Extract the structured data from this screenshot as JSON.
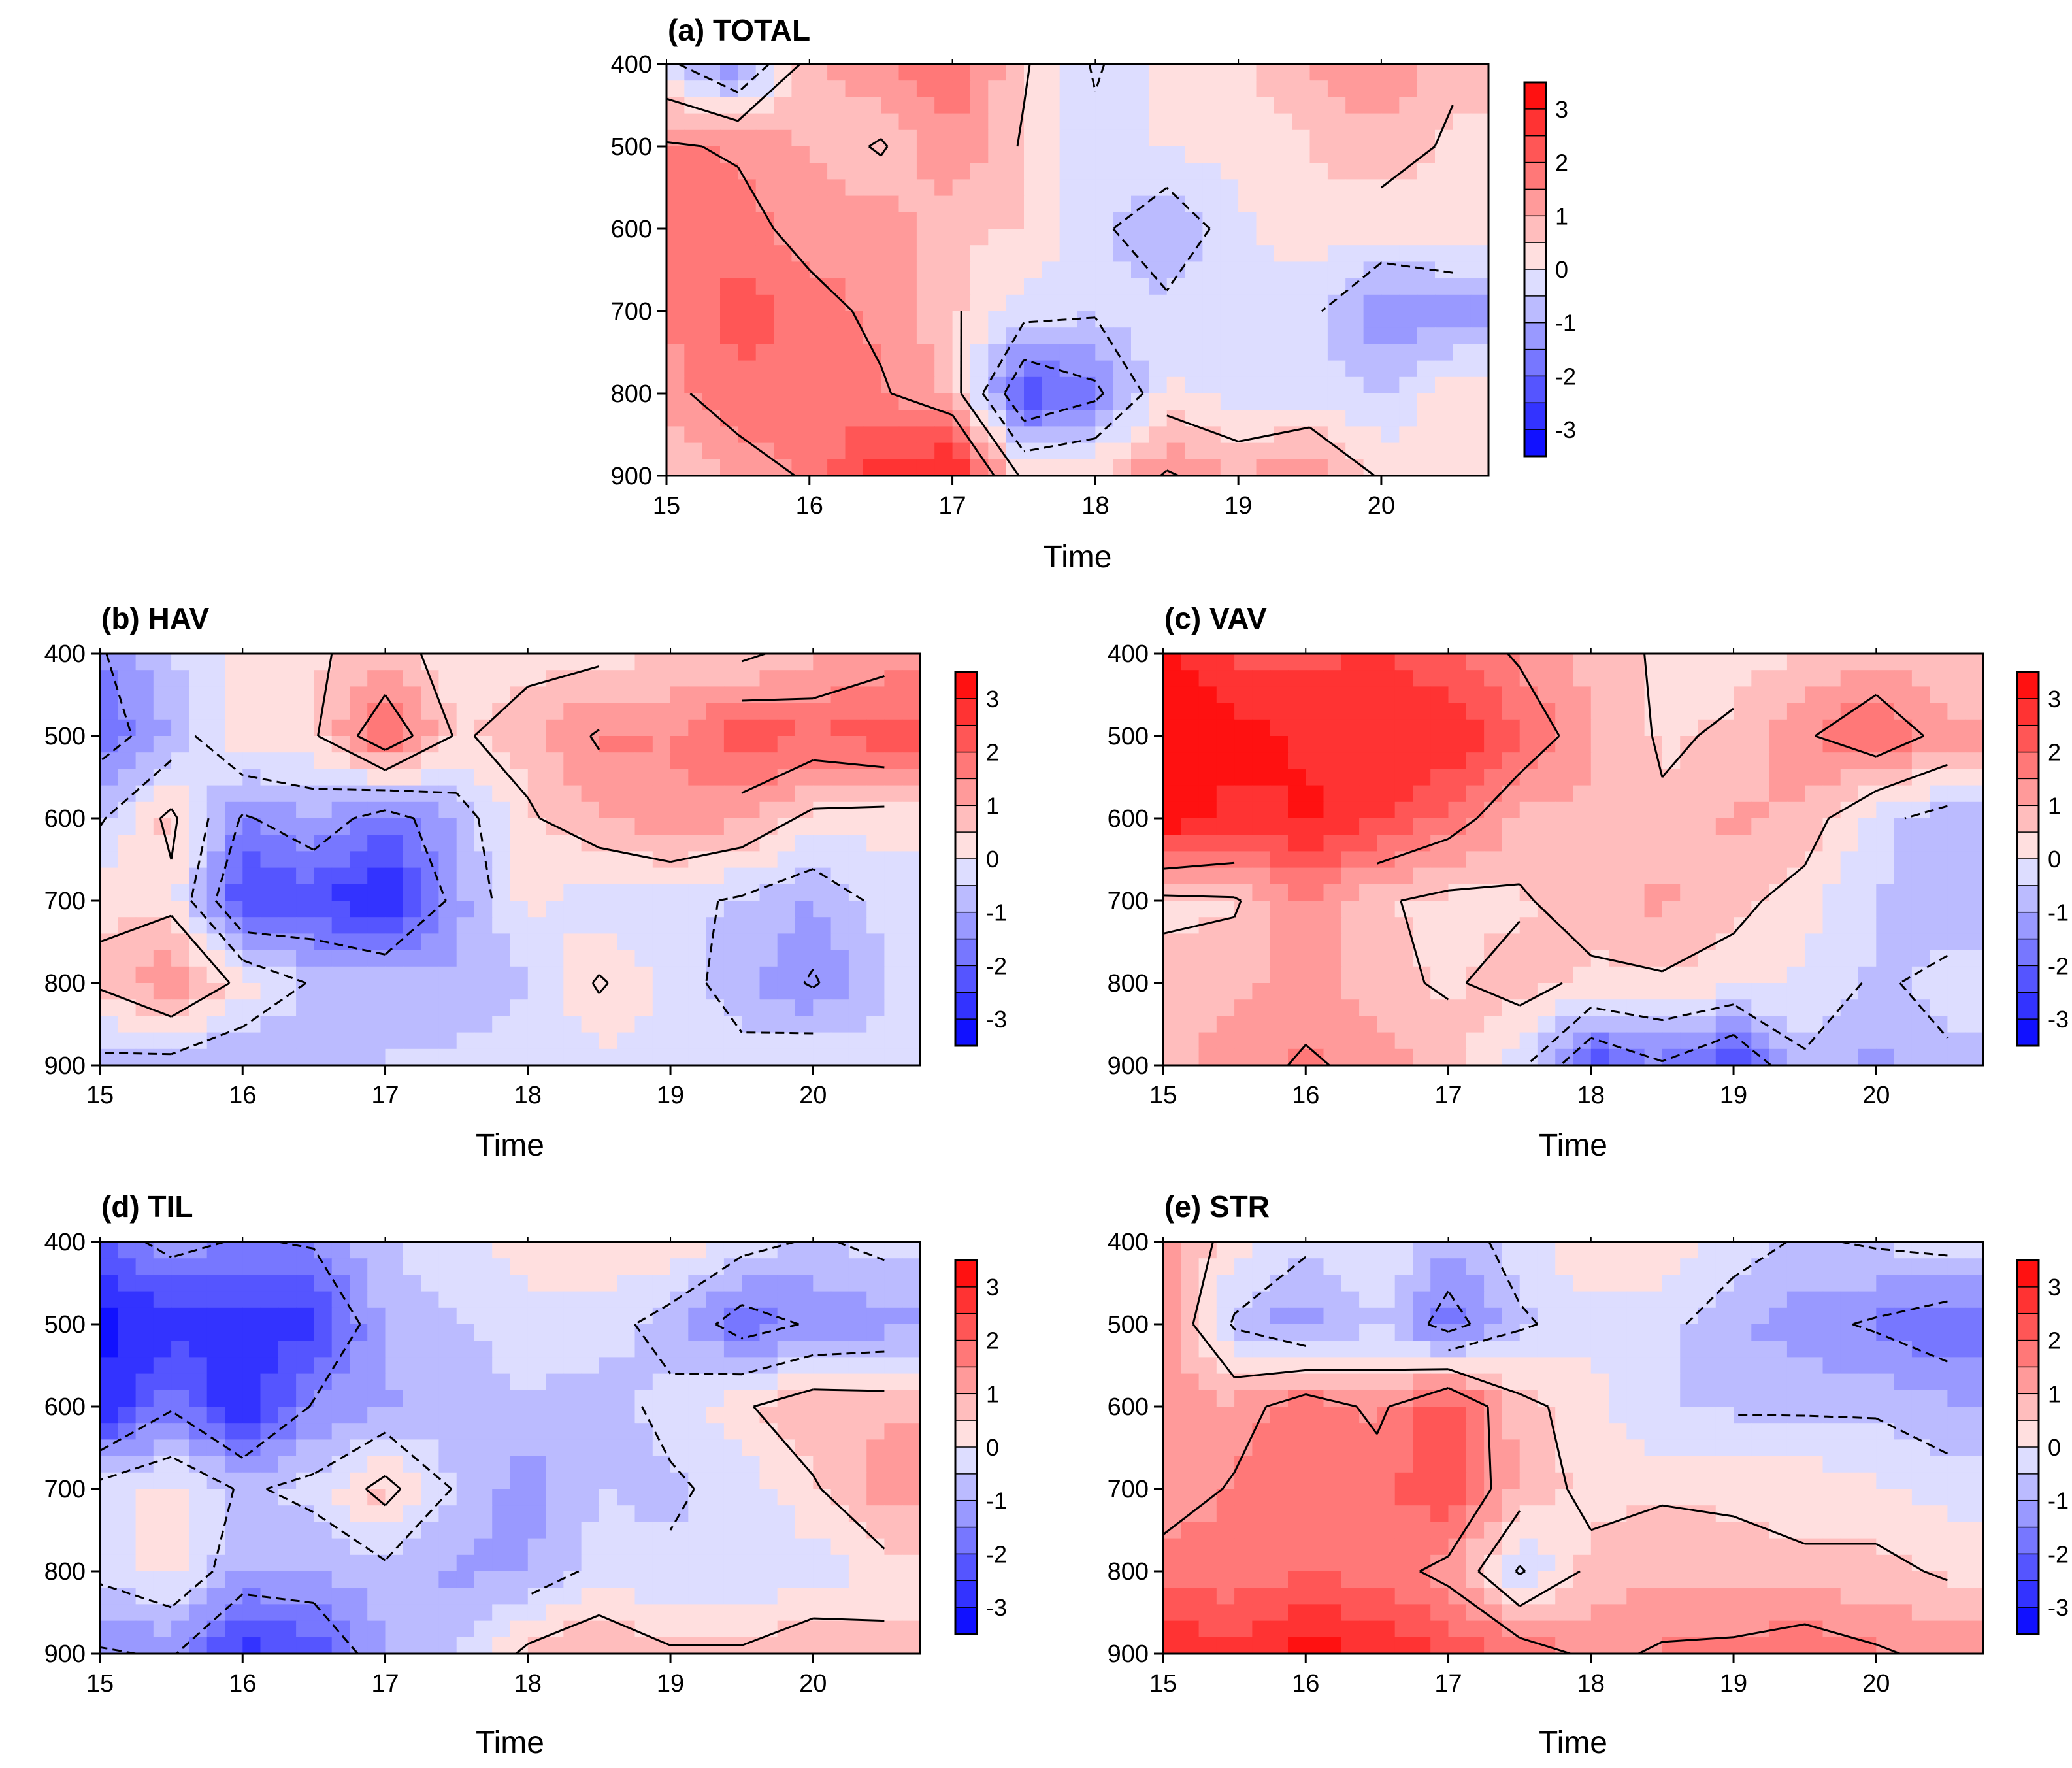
{
  "chart_data": [
    {
      "type": "heatmap",
      "id": "a",
      "title": "(a) TOTAL",
      "xlabel": "Time",
      "ylabel": "",
      "x_ticks": [
        15,
        16,
        17,
        18,
        19,
        20
      ],
      "y_ticks": [
        400,
        500,
        600,
        700,
        800,
        900
      ],
      "xlim": [
        15,
        20.75
      ],
      "ylim": [
        900,
        400
      ],
      "colorbar": {
        "ticks": [
          3,
          2,
          1,
          0,
          -1,
          -2,
          -3
        ],
        "range": [
          -3.5,
          3.5
        ],
        "levels": 14
      },
      "x": [
        15,
        15.5,
        16,
        16.5,
        17,
        17.5,
        18,
        18.5,
        19,
        19.5,
        20,
        20.5
      ],
      "y": [
        400,
        500,
        600,
        700,
        800,
        900
      ],
      "z": [
        [
          -0.3,
          -1.5,
          0.8,
          1.5,
          1.8,
          0.6,
          -0.6,
          0.2,
          0.4,
          1.0,
          1.5,
          0.6
        ],
        [
          1.6,
          1.4,
          1.0,
          0.4,
          1.5,
          0.4,
          -0.3,
          0.1,
          0.1,
          0.5,
          0.8,
          0.4
        ],
        [
          1.9,
          1.8,
          1.2,
          1.3,
          0.6,
          0.5,
          -0.3,
          -1.1,
          -0.1,
          0.3,
          0.2,
          0.3
        ],
        [
          1.5,
          2.2,
          1.8,
          1.3,
          0.6,
          -0.2,
          -0.4,
          -0.3,
          -0.2,
          -0.3,
          -1.5,
          -1.2
        ],
        [
          1.3,
          1.9,
          1.9,
          1.6,
          0.9,
          -2.4,
          -1.7,
          0.1,
          -0.2,
          -0.2,
          -0.5,
          0.3
        ],
        [
          0.5,
          1.1,
          1.6,
          2.8,
          3.2,
          0.3,
          0.5,
          1.6,
          1.0,
          1.5,
          0.4,
          0.3
        ]
      ]
    },
    {
      "type": "heatmap",
      "id": "b",
      "title": "(b) HAV",
      "xlabel": "Time",
      "ylabel": "",
      "x_ticks": [
        15,
        16,
        17,
        18,
        19,
        20
      ],
      "y_ticks": [
        400,
        500,
        600,
        700,
        800,
        900
      ],
      "xlim": [
        15,
        20.75
      ],
      "ylim": [
        900,
        400
      ],
      "colorbar": {
        "ticks": [
          3,
          2,
          1,
          0,
          -1,
          -2,
          -3
        ],
        "range": [
          -3.5,
          3.5
        ],
        "levels": 14
      },
      "x": [
        15,
        15.5,
        16,
        16.5,
        17,
        17.5,
        18,
        18.5,
        19,
        19.5,
        20,
        20.5
      ],
      "y": [
        400,
        500,
        600,
        700,
        800,
        900
      ],
      "z": [
        [
          -1.6,
          -0.5,
          0.3,
          0.4,
          0.8,
          0.2,
          0.3,
          0.3,
          0.5,
          0.3,
          0.9,
          1.2
        ],
        [
          -1.9,
          -1.0,
          0.5,
          0.4,
          2.2,
          0.4,
          0.8,
          1.6,
          1.5,
          2.4,
          2.0,
          2.3
        ],
        [
          -0.6,
          0.7,
          -1.6,
          -1.0,
          -1.9,
          -0.9,
          0.4,
          1.0,
          1.4,
          1.1,
          0.3,
          0.2
        ],
        [
          0.4,
          0.3,
          -2.6,
          -2.3,
          -3.2,
          -1.2,
          0.2,
          -0.4,
          -0.3,
          -0.6,
          -1.0,
          -0.3
        ],
        [
          0.6,
          1.4,
          0.3,
          -0.6,
          -0.6,
          -1.0,
          -0.5,
          0.6,
          -0.2,
          -0.8,
          -1.6,
          -0.5
        ],
        [
          -0.7,
          -0.8,
          -1.2,
          -0.6,
          -0.5,
          -0.3,
          -0.3,
          -0.2,
          -0.1,
          -0.3,
          0.2,
          -0.4
        ]
      ]
    },
    {
      "type": "heatmap",
      "id": "c",
      "title": "(c) VAV",
      "xlabel": "Time",
      "ylabel": "",
      "x_ticks": [
        15,
        16,
        17,
        18,
        19,
        20
      ],
      "y_ticks": [
        400,
        500,
        600,
        700,
        800,
        900
      ],
      "xlim": [
        15,
        20.75
      ],
      "ylim": [
        900,
        400
      ],
      "colorbar": {
        "ticks": [
          3,
          2,
          1,
          0,
          -1,
          -2,
          -3
        ],
        "range": [
          -3.5,
          3.5
        ],
        "levels": 14
      },
      "x": [
        15,
        15.5,
        16,
        16.5,
        17,
        17.5,
        18,
        18.5,
        19,
        19.5,
        20,
        20.5
      ],
      "y": [
        400,
        500,
        600,
        700,
        800,
        900
      ],
      "z": [
        [
          3.2,
          2.4,
          2.3,
          2.6,
          2.0,
          1.4,
          0.8,
          0.4,
          0.3,
          0.5,
          0.9,
          0.5
        ],
        [
          3.5,
          3.2,
          2.9,
          3.0,
          3.0,
          2.0,
          1.1,
          0.4,
          0.6,
          1.4,
          2.1,
          1.2
        ],
        [
          3.4,
          2.8,
          3.1,
          2.6,
          1.9,
          0.9,
          0.9,
          0.6,
          1.1,
          0.9,
          -0.3,
          -0.8
        ],
        [
          0.3,
          0.4,
          1.5,
          0.6,
          0.3,
          0.4,
          0.9,
          1.1,
          0.7,
          0.2,
          -0.5,
          -0.9
        ],
        [
          0.8,
          0.9,
          1.2,
          0.7,
          0.4,
          0.8,
          0.3,
          0.4,
          0.2,
          -0.1,
          -0.6,
          -0.3
        ],
        [
          0.9,
          1.2,
          1.6,
          1.3,
          0.9,
          -0.3,
          -2.4,
          -1.6,
          -2.5,
          -0.6,
          -1.2,
          -0.6
        ]
      ]
    },
    {
      "type": "heatmap",
      "id": "d",
      "title": "(d) TIL",
      "xlabel": "Time",
      "ylabel": "",
      "x_ticks": [
        15,
        16,
        17,
        18,
        19,
        20
      ],
      "y_ticks": [
        400,
        500,
        600,
        700,
        800,
        900
      ],
      "xlim": [
        15,
        20.75
      ],
      "ylim": [
        900,
        400
      ],
      "colorbar": {
        "ticks": [
          3,
          2,
          1,
          0,
          -1,
          -2,
          -3
        ],
        "range": [
          -3.5,
          3.5
        ],
        "levels": 14
      },
      "x": [
        15,
        15.5,
        16,
        16.5,
        17,
        17.5,
        18,
        18.5,
        19,
        19.5,
        20,
        20.5
      ],
      "y": [
        400,
        500,
        600,
        700,
        800,
        900
      ],
      "z": [
        [
          -2.0,
          -1.2,
          -1.6,
          -1.4,
          -0.5,
          -0.2,
          0.3,
          0.4,
          0.4,
          -0.2,
          -0.6,
          -0.3
        ],
        [
          -3.2,
          -2.8,
          -2.8,
          -2.6,
          -0.9,
          -0.5,
          -0.3,
          -0.2,
          -0.8,
          -1.9,
          -1.4,
          -1.2
        ],
        [
          -3.0,
          -1.6,
          -3.0,
          -1.4,
          -1.1,
          -0.8,
          -0.5,
          -0.8,
          -0.3,
          0.4,
          1.0,
          0.9
        ],
        [
          -0.2,
          0.2,
          -0.6,
          -0.3,
          0.8,
          -0.6,
          -1.3,
          -0.5,
          -0.6,
          -0.3,
          0.4,
          1.3
        ],
        [
          -0.3,
          0.2,
          -1.0,
          -1.0,
          -0.7,
          -1.1,
          -1.0,
          -0.3,
          -0.4,
          -0.4,
          -0.3,
          0.2
        ],
        [
          -1.6,
          -1.4,
          -2.8,
          -2.3,
          -1.0,
          -0.5,
          0.7,
          1.2,
          0.6,
          0.6,
          1.1,
          0.7
        ]
      ]
    },
    {
      "type": "heatmap",
      "id": "e",
      "title": "(e) STR",
      "xlabel": "Time",
      "ylabel": "",
      "x_ticks": [
        15,
        16,
        17,
        18,
        19,
        20
      ],
      "y_ticks": [
        400,
        500,
        600,
        700,
        800,
        900
      ],
      "xlim": [
        15,
        20.75
      ],
      "ylim": [
        900,
        400
      ],
      "colorbar": {
        "ticks": [
          3,
          2,
          1,
          0,
          -1,
          -2,
          -3
        ],
        "range": [
          -3.5,
          3.5
        ],
        "levels": 14
      },
      "x": [
        15,
        15.5,
        16,
        16.5,
        17,
        17.5,
        18,
        18.5,
        19,
        19.5,
        20,
        20.5
      ],
      "y": [
        400,
        500,
        600,
        700,
        800,
        900
      ],
      "z": [
        [
          1.2,
          0.2,
          -0.3,
          0.1,
          -0.9,
          -0.2,
          0.4,
          0.3,
          -0.2,
          -0.6,
          -0.4,
          -0.2
        ],
        [
          1.3,
          -0.6,
          -1.4,
          -0.5,
          -1.9,
          -0.6,
          -0.2,
          -0.3,
          -0.9,
          -1.3,
          -1.6,
          -2.0
        ],
        [
          1.4,
          1.1,
          2.0,
          1.3,
          2.5,
          0.7,
          0.2,
          -0.5,
          -0.6,
          -0.6,
          -0.6,
          -0.9
        ],
        [
          1.0,
          1.6,
          2.0,
          1.9,
          2.4,
          0.9,
          0.3,
          0.4,
          0.4,
          0.3,
          0.1,
          -0.2
        ],
        [
          1.9,
          1.6,
          2.0,
          1.8,
          1.3,
          -0.6,
          0.7,
          0.9,
          0.7,
          0.6,
          0.7,
          0.4
        ],
        [
          2.9,
          2.8,
          3.2,
          3.0,
          2.4,
          2.0,
          1.3,
          1.6,
          1.7,
          2.0,
          1.6,
          1.3
        ]
      ]
    }
  ],
  "colors": {
    "negative_end": "#0000ff",
    "positive_end": "#ff0000",
    "contour": "#000000"
  }
}
